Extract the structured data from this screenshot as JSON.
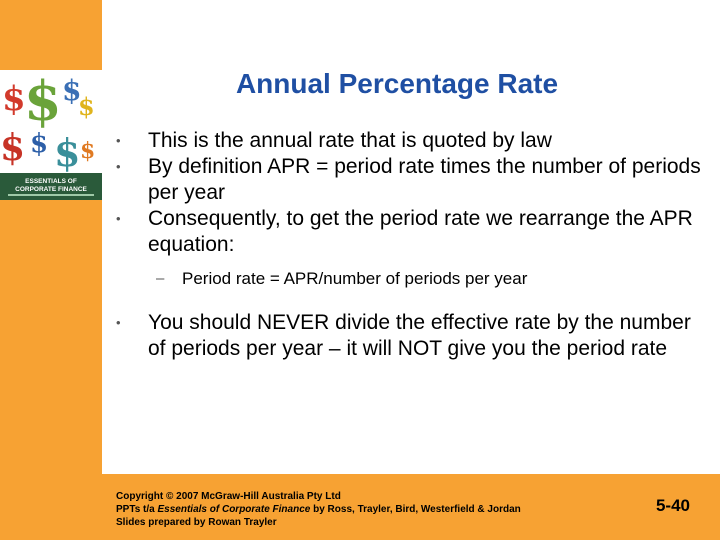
{
  "title": "Annual Percentage Rate",
  "bullets": [
    "This is the annual rate that is quoted by law",
    "By definition APR = period rate times the number of periods per year",
    "Consequently, to get the period rate we rearrange the APR equation:"
  ],
  "sub_bullet": "Period rate = APR/number of periods per year",
  "bullet_last": "You should NEVER divide the effective rate by the number of periods per year – it will NOT give you the period rate",
  "bullet_marker": "•",
  "dash_marker": "–",
  "cover": {
    "book_title_line1": "ESSENTIALS OF",
    "book_title_line2": "CORPORATE FINANCE",
    "symbol": "$"
  },
  "footer": {
    "line1": "Copyright © 2007 McGraw-Hill Australia Pty Ltd",
    "line2_prefix": "PPTs t/a ",
    "line2_italic": "Essentials of Corporate Finance",
    "line2_suffix": " by Ross, Trayler, Bird, Westerfield & Jordan",
    "line3": "Slides prepared by Rowan Trayler",
    "slide_number": "5-40"
  },
  "colors": {
    "accent": "#f7a233",
    "title": "#1f4fa3"
  }
}
